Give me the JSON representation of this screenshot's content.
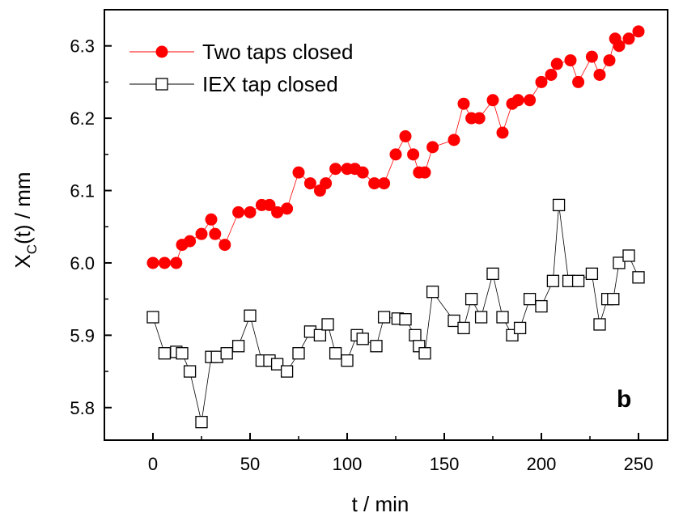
{
  "chart_data": {
    "type": "scatter",
    "xlabel": "t / min",
    "ylabel": "X_C(t) / mm",
    "ylabel_main": "X",
    "ylabel_sub": "C",
    "ylabel_rest": "(t) / mm",
    "xlim": [
      -25,
      265
    ],
    "ylim": [
      5.755,
      6.35
    ],
    "xticks": [
      0,
      50,
      100,
      150,
      200,
      250
    ],
    "yticks": [
      5.8,
      5.9,
      6.0,
      6.1,
      6.2,
      6.3
    ],
    "ytick_labels": [
      "5.8",
      "5.9",
      "6.0",
      "6.1",
      "6.2",
      "6.3"
    ],
    "grid": false,
    "legend_position": "top-left",
    "panel_label": "b",
    "series": [
      {
        "name": "Two taps closed",
        "color": "#ff0000",
        "marker": "filled-circle",
        "points": [
          [
            0,
            6.0
          ],
          [
            6,
            6.0
          ],
          [
            12,
            6.0
          ],
          [
            15,
            6.025
          ],
          [
            19,
            6.03
          ],
          [
            25,
            6.04
          ],
          [
            30,
            6.06
          ],
          [
            32,
            6.04
          ],
          [
            37,
            6.025
          ],
          [
            44,
            6.07
          ],
          [
            50,
            6.07
          ],
          [
            56,
            6.08
          ],
          [
            60,
            6.08
          ],
          [
            64,
            6.07
          ],
          [
            69,
            6.075
          ],
          [
            75,
            6.125
          ],
          [
            81,
            6.11
          ],
          [
            86,
            6.1
          ],
          [
            89,
            6.11
          ],
          [
            94,
            6.13
          ],
          [
            100,
            6.13
          ],
          [
            104,
            6.13
          ],
          [
            108,
            6.125
          ],
          [
            114,
            6.11
          ],
          [
            119,
            6.11
          ],
          [
            125,
            6.15
          ],
          [
            130,
            6.175
          ],
          [
            134,
            6.15
          ],
          [
            137,
            6.125
          ],
          [
            140,
            6.125
          ],
          [
            144,
            6.16
          ],
          [
            155,
            6.17
          ],
          [
            160,
            6.22
          ],
          [
            164,
            6.2
          ],
          [
            168,
            6.2
          ],
          [
            175,
            6.225
          ],
          [
            180,
            6.18
          ],
          [
            185,
            6.22
          ],
          [
            188,
            6.225
          ],
          [
            194,
            6.225
          ],
          [
            200,
            6.25
          ],
          [
            205,
            6.26
          ],
          [
            208,
            6.275
          ],
          [
            215,
            6.28
          ],
          [
            219,
            6.25
          ],
          [
            226,
            6.285
          ],
          [
            230,
            6.26
          ],
          [
            235,
            6.28
          ],
          [
            238,
            6.31
          ],
          [
            240,
            6.3
          ],
          [
            245,
            6.31
          ],
          [
            250,
            6.32
          ]
        ]
      },
      {
        "name": "IEX tap closed",
        "color": "#000000",
        "marker": "open-square",
        "points": [
          [
            0,
            5.925
          ],
          [
            6,
            5.875
          ],
          [
            12,
            5.877
          ],
          [
            15,
            5.875
          ],
          [
            19,
            5.85
          ],
          [
            25,
            5.78
          ],
          [
            30,
            5.87
          ],
          [
            33,
            5.87
          ],
          [
            38,
            5.875
          ],
          [
            44,
            5.885
          ],
          [
            50,
            5.927
          ],
          [
            56,
            5.865
          ],
          [
            60,
            5.865
          ],
          [
            64,
            5.86
          ],
          [
            69,
            5.85
          ],
          [
            75,
            5.875
          ],
          [
            81,
            5.905
          ],
          [
            86,
            5.9
          ],
          [
            90,
            5.915
          ],
          [
            94,
            5.875
          ],
          [
            100,
            5.865
          ],
          [
            105,
            5.9
          ],
          [
            108,
            5.895
          ],
          [
            115,
            5.885
          ],
          [
            119,
            5.925
          ],
          [
            126,
            5.923
          ],
          [
            130,
            5.922
          ],
          [
            135,
            5.9
          ],
          [
            137,
            5.885
          ],
          [
            140,
            5.875
          ],
          [
            144,
            5.96
          ],
          [
            155,
            5.92
          ],
          [
            160,
            5.91
          ],
          [
            164,
            5.95
          ],
          [
            169,
            5.925
          ],
          [
            175,
            5.985
          ],
          [
            180,
            5.925
          ],
          [
            185,
            5.9
          ],
          [
            189,
            5.91
          ],
          [
            194,
            5.95
          ],
          [
            200,
            5.94
          ],
          [
            206,
            5.975
          ],
          [
            209,
            6.08
          ],
          [
            214,
            5.975
          ],
          [
            219,
            5.975
          ],
          [
            226,
            5.985
          ],
          [
            230,
            5.915
          ],
          [
            234,
            5.95
          ],
          [
            237,
            5.95
          ],
          [
            240,
            6.0
          ],
          [
            245,
            6.01
          ],
          [
            250,
            5.98
          ]
        ]
      }
    ]
  }
}
